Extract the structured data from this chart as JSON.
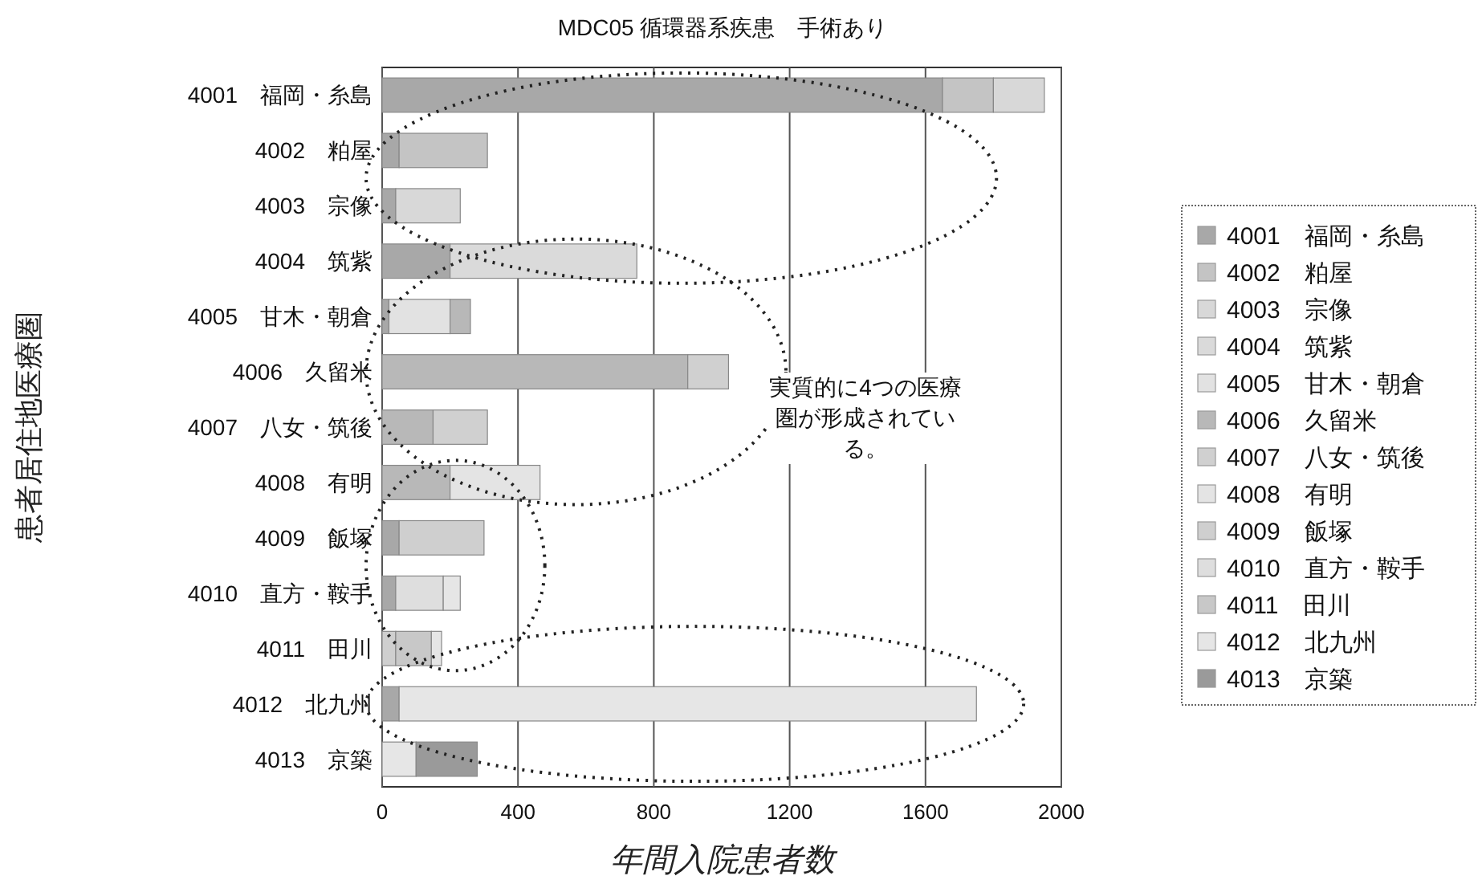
{
  "chart_data": {
    "type": "bar",
    "orientation": "horizontal",
    "stacked": true,
    "title": "MDC05 循環器系疾患　手術あり",
    "xlabel": "年間入院患者数",
    "ylabel": "患者居住地医療圏",
    "categories": [
      "4001　福岡・糸島",
      "4002　粕屋",
      "4003　宗像",
      "4004　筑紫",
      "4005　甘木・朝倉",
      "4006　久留米",
      "4007　八女・筑後",
      "4008　有明",
      "4009　飯塚",
      "4010　直方・鞍手",
      "4011　田川",
      "4012　北九州",
      "4013　京築"
    ],
    "series": [
      {
        "name": "4001　福岡・糸島",
        "color": "#a8a8a8",
        "values": [
          1650,
          50,
          40,
          200,
          20,
          null,
          null,
          null,
          50,
          40,
          null,
          50,
          null
        ]
      },
      {
        "name": "4002　粕屋",
        "color": "#c4c4c4",
        "values": [
          150,
          260,
          null,
          null,
          null,
          null,
          null,
          null,
          null,
          null,
          null,
          null,
          null
        ]
      },
      {
        "name": "4003　宗像",
        "color": "#d8d8d8",
        "values": [
          150,
          null,
          190,
          null,
          null,
          null,
          null,
          null,
          null,
          null,
          null,
          null,
          null
        ]
      },
      {
        "name": "4004　筑紫",
        "color": "#dadada",
        "values": [
          null,
          null,
          null,
          550,
          null,
          null,
          null,
          null,
          null,
          null,
          null,
          null,
          null
        ]
      },
      {
        "name": "4005　甘木・朝倉",
        "color": "#e2e2e2",
        "values": [
          null,
          null,
          null,
          null,
          180,
          null,
          null,
          null,
          null,
          null,
          null,
          null,
          null
        ]
      },
      {
        "name": "4006　久留米",
        "color": "#b8b8b8",
        "values": [
          null,
          null,
          null,
          null,
          60,
          900,
          150,
          200,
          null,
          null,
          null,
          null,
          null
        ]
      },
      {
        "name": "4007　八女・筑後",
        "color": "#d0d0d0",
        "values": [
          null,
          null,
          null,
          null,
          null,
          120,
          160,
          null,
          null,
          null,
          null,
          null,
          null
        ]
      },
      {
        "name": "4008　有明",
        "color": "#e4e4e4",
        "values": [
          null,
          null,
          null,
          null,
          null,
          null,
          null,
          265,
          null,
          null,
          null,
          null,
          null
        ]
      },
      {
        "name": "4009　飯塚",
        "color": "#cfcfcf",
        "values": [
          null,
          null,
          null,
          null,
          null,
          null,
          null,
          null,
          250,
          null,
          40,
          null,
          null
        ]
      },
      {
        "name": "4010　直方・鞍手",
        "color": "#dedede",
        "values": [
          null,
          null,
          null,
          null,
          null,
          null,
          null,
          null,
          null,
          140,
          null,
          null,
          null
        ]
      },
      {
        "name": "4011　田川",
        "color": "#c8c8c8",
        "values": [
          null,
          null,
          null,
          null,
          null,
          null,
          null,
          null,
          null,
          null,
          105,
          null,
          null
        ]
      },
      {
        "name": "4012　北九州",
        "color": "#e6e6e6",
        "values": [
          null,
          null,
          null,
          null,
          null,
          null,
          null,
          null,
          null,
          50,
          30,
          1700,
          100
        ]
      },
      {
        "name": "4013　京築",
        "color": "#9a9a9a",
        "values": [
          null,
          null,
          null,
          null,
          null,
          null,
          null,
          null,
          null,
          null,
          null,
          null,
          180
        ]
      }
    ],
    "xlim": [
      0,
      2000
    ],
    "xticks": [
      0,
      400,
      800,
      1200,
      1600,
      2000
    ],
    "grid": "x",
    "legend": "right",
    "annotations": [
      "実質的に4つの医療圏が形成されている。"
    ]
  }
}
